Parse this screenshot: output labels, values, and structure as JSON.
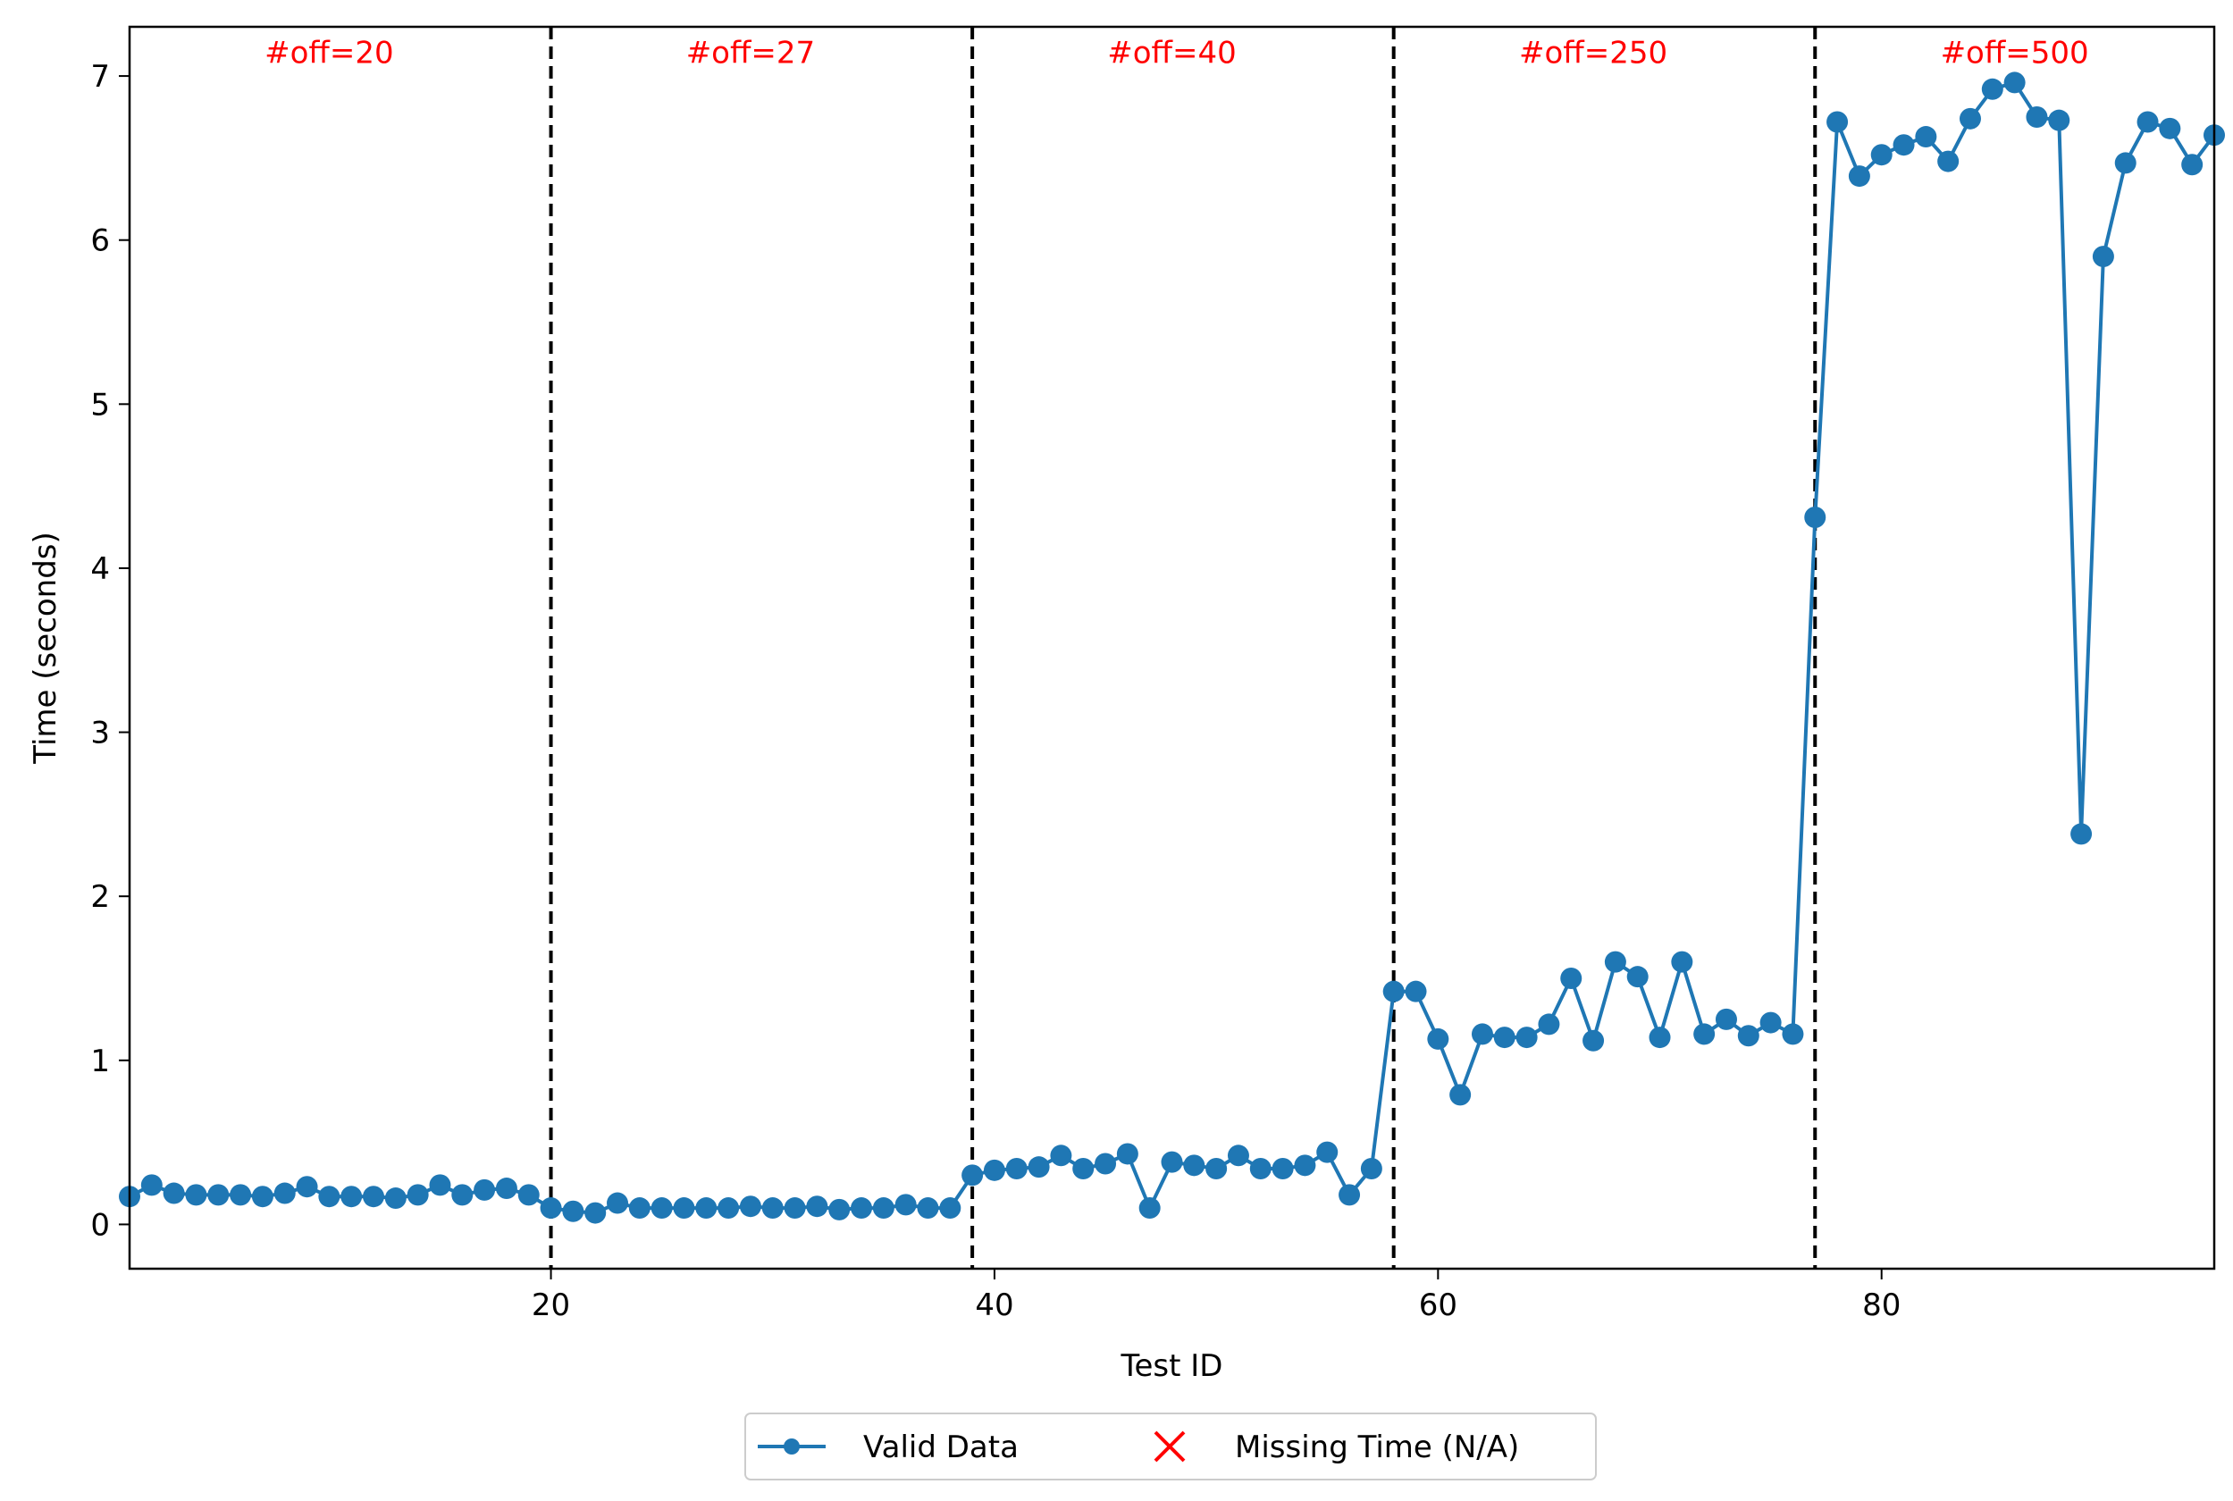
{
  "chart_data": {
    "type": "line",
    "xlabel": "Test ID",
    "ylabel": "Time (seconds)",
    "xlim": [
      1,
      95
    ],
    "ylim": [
      -0.27,
      7.3
    ],
    "xticks": [
      20,
      40,
      60,
      80
    ],
    "yticks": [
      0,
      1,
      2,
      3,
      4,
      5,
      6,
      7
    ],
    "grid": false,
    "legend_position": "bottom-center",
    "colors": {
      "series": "#1f77b4",
      "missing": "#ff0000",
      "section_text": "#ff0000",
      "divider": "#000000"
    },
    "series": [
      {
        "name": "Valid Data",
        "x": [
          1,
          2,
          3,
          4,
          5,
          6,
          7,
          8,
          9,
          10,
          11,
          12,
          13,
          14,
          15,
          16,
          17,
          18,
          19,
          20,
          21,
          22,
          23,
          24,
          25,
          26,
          27,
          28,
          29,
          30,
          31,
          32,
          33,
          34,
          35,
          36,
          37,
          38,
          39,
          40,
          41,
          42,
          43,
          44,
          45,
          46,
          47,
          48,
          49,
          50,
          51,
          52,
          53,
          54,
          55,
          56,
          57,
          58,
          59,
          60,
          61,
          62,
          63,
          64,
          65,
          66,
          67,
          68,
          69,
          70,
          71,
          72,
          73,
          74,
          75,
          76,
          77,
          78,
          79,
          80,
          81,
          82,
          83,
          84,
          85,
          86,
          87,
          88,
          89,
          90,
          91,
          92,
          93,
          94,
          95
        ],
        "y": [
          0.17,
          0.24,
          0.19,
          0.18,
          0.18,
          0.18,
          0.17,
          0.19,
          0.23,
          0.17,
          0.17,
          0.17,
          0.16,
          0.18,
          0.24,
          0.18,
          0.21,
          0.22,
          0.18,
          0.1,
          0.08,
          0.07,
          0.13,
          0.1,
          0.1,
          0.1,
          0.1,
          0.1,
          0.11,
          0.1,
          0.1,
          0.11,
          0.09,
          0.1,
          0.1,
          0.12,
          0.1,
          0.1,
          0.3,
          0.33,
          0.34,
          0.35,
          0.42,
          0.34,
          0.37,
          0.43,
          0.1,
          0.38,
          0.36,
          0.34,
          0.42,
          0.34,
          0.34,
          0.36,
          0.44,
          0.18,
          0.34,
          1.42,
          1.42,
          1.13,
          0.79,
          1.16,
          1.14,
          1.14,
          1.22,
          1.5,
          1.12,
          1.6,
          1.51,
          1.14,
          1.6,
          1.16,
          1.25,
          1.15,
          1.23,
          1.16,
          4.31,
          6.72,
          6.39,
          6.52,
          6.58,
          6.63,
          6.48,
          6.74,
          6.92,
          6.96,
          6.75,
          6.73,
          2.38,
          5.9,
          6.47,
          6.72,
          6.68,
          6.46,
          6.64
        ]
      },
      {
        "name": "Missing Time (N/A)",
        "x": [],
        "y": []
      }
    ],
    "dividers": [
      20,
      39,
      58,
      77
    ],
    "sections": [
      {
        "label": "#off=20",
        "x_center": 10
      },
      {
        "label": "#off=27",
        "x_center": 29
      },
      {
        "label": "#off=40",
        "x_center": 48
      },
      {
        "label": "#off=250",
        "x_center": 67
      },
      {
        "label": "#off=500",
        "x_center": 86
      }
    ],
    "section_label_y": 7.08
  }
}
